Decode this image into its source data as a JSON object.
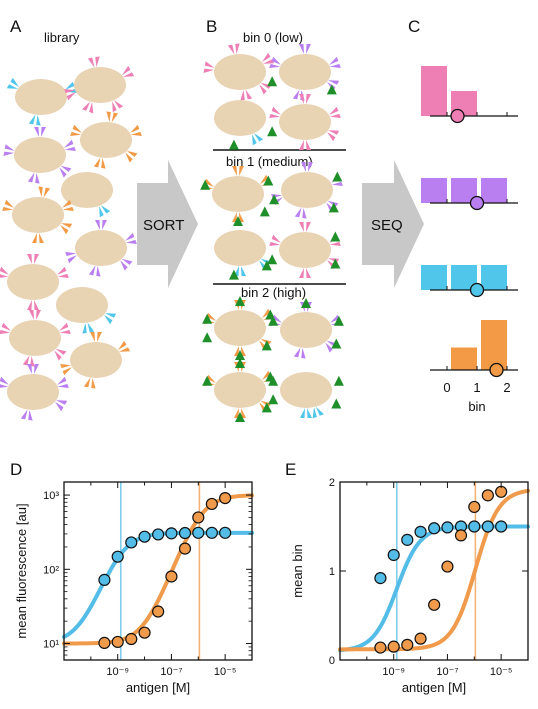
{
  "panels": {
    "a": {
      "letter": "A",
      "title": "library"
    },
    "b": {
      "letter": "B",
      "bins": [
        "bin 0 (low)",
        "bin 1 (medium)",
        "bin 2 (high)"
      ]
    },
    "c": {
      "letter": "C",
      "xlabel": "bin",
      "ticks": [
        "0",
        "1",
        "2"
      ]
    },
    "d": {
      "letter": "D"
    },
    "e": {
      "letter": "E"
    }
  },
  "arrows": {
    "sort": "SORT",
    "seq": "SEQ"
  },
  "colors": {
    "cell": "#e8d3b2",
    "pink": "#ee7fb5",
    "purple": "#b97ff0",
    "cyan": "#4fc6ea",
    "orange": "#f29a45",
    "green": "#1f8f2a",
    "blue_curve": "#53bde8",
    "orange_curve": "#f09a4b",
    "arrow": "#c8c8c8"
  },
  "chart_data": [
    {
      "type": "bar",
      "panel": "C",
      "xlabel": "bin",
      "categories": [
        "0",
        "1",
        "2"
      ],
      "rows": [
        {
          "color": "pink",
          "values": [
            1.0,
            0.5,
            0
          ],
          "mean_bin": 0.35
        },
        {
          "color": "purple",
          "values": [
            0.5,
            0.5,
            0.5
          ],
          "mean_bin": 1.0
        },
        {
          "color": "cyan",
          "values": [
            0.5,
            0.5,
            0.5
          ],
          "mean_bin": 1.0
        },
        {
          "color": "orange",
          "values": [
            0,
            0.45,
            1.0
          ],
          "mean_bin": 1.65
        }
      ]
    },
    {
      "type": "line",
      "panel": "D",
      "xlabel": "antigen [M]",
      "ylabel": "mean fluorescence [au]",
      "xscale": "log",
      "yscale": "log",
      "xlim": [
        1e-11,
        0.0001
      ],
      "ylim": [
        6,
        1500
      ],
      "xticks": [
        {
          "value": 1e-09,
          "label": "10⁻⁹"
        },
        {
          "value": 1e-07,
          "label": "10⁻⁷"
        },
        {
          "value": 1e-05,
          "label": "10⁻⁵"
        }
      ],
      "yticks": [
        {
          "value": 10,
          "label": "10¹"
        },
        {
          "value": 100,
          "label": "10²"
        },
        {
          "value": 1000,
          "label": "10³"
        }
      ],
      "series": [
        {
          "color": "blue",
          "kd": 1.3e-09,
          "low": 10,
          "high": 310,
          "points": [
            [
              3.2e-10,
              72
            ],
            [
              1e-09,
              148
            ],
            [
              3.2e-09,
              230
            ],
            [
              1e-08,
              275
            ],
            [
              3.2e-08,
              295
            ],
            [
              1e-07,
              305
            ],
            [
              3.2e-07,
              308
            ],
            [
              1e-06,
              310
            ],
            [
              3.2e-06,
              310
            ],
            [
              1e-05,
              310
            ]
          ]
        },
        {
          "color": "orange",
          "kd": 1.1e-06,
          "low": 10,
          "high": 1000,
          "points": [
            [
              3.2e-10,
              10.2
            ],
            [
              1e-09,
              10.5
            ],
            [
              3.2e-09,
              11.5
            ],
            [
              1e-08,
              14
            ],
            [
              3.2e-08,
              27
            ],
            [
              1e-07,
              80
            ],
            [
              3.2e-07,
              190
            ],
            [
              1e-06,
              500
            ],
            [
              3.2e-06,
              760
            ],
            [
              1e-05,
              910
            ]
          ]
        }
      ],
      "vlines": [
        {
          "value": 1.3e-09,
          "color": "blue"
        },
        {
          "value": 1.1e-06,
          "color": "orange"
        }
      ]
    },
    {
      "type": "line",
      "panel": "E",
      "xlabel": "antigen [M]",
      "ylabel": "mean bin",
      "xscale": "log",
      "xlim": [
        1e-11,
        0.0001
      ],
      "ylim": [
        0,
        2
      ],
      "xticks": [
        {
          "value": 1e-09,
          "label": "10⁻⁹"
        },
        {
          "value": 1e-07,
          "label": "10⁻⁷"
        },
        {
          "value": 1e-05,
          "label": "10⁻⁵"
        }
      ],
      "yticks": [
        {
          "value": 0,
          "label": "0"
        },
        {
          "value": 1,
          "label": "1"
        },
        {
          "value": 2,
          "label": "2"
        }
      ],
      "series": [
        {
          "color": "blue",
          "kd": 1.3e-09,
          "low": 0.1,
          "high": 1.5,
          "points": [
            [
              3.2e-10,
              0.92
            ],
            [
              1e-09,
              1.18
            ],
            [
              3.2e-09,
              1.35
            ],
            [
              1e-08,
              1.44
            ],
            [
              3.2e-08,
              1.48
            ],
            [
              1e-07,
              1.49
            ],
            [
              3.2e-07,
              1.5
            ],
            [
              1e-06,
              1.5
            ],
            [
              3.2e-06,
              1.5
            ],
            [
              1e-05,
              1.5
            ]
          ]
        },
        {
          "color": "orange",
          "kd": 1.1e-06,
          "low": 0.12,
          "high": 1.92,
          "points": [
            [
              3.2e-10,
              0.14
            ],
            [
              1e-09,
              0.15
            ],
            [
              3.2e-09,
              0.17
            ],
            [
              1e-08,
              0.24
            ],
            [
              3.2e-08,
              0.62
            ],
            [
              1e-07,
              1.05
            ],
            [
              3.2e-07,
              1.4
            ],
            [
              1e-06,
              1.72
            ],
            [
              3.2e-06,
              1.85
            ],
            [
              1e-05,
              1.89
            ]
          ]
        }
      ],
      "vlines": [
        {
          "value": 1.3e-09,
          "color": "blue"
        },
        {
          "value": 1.1e-06,
          "color": "orange"
        }
      ]
    }
  ]
}
